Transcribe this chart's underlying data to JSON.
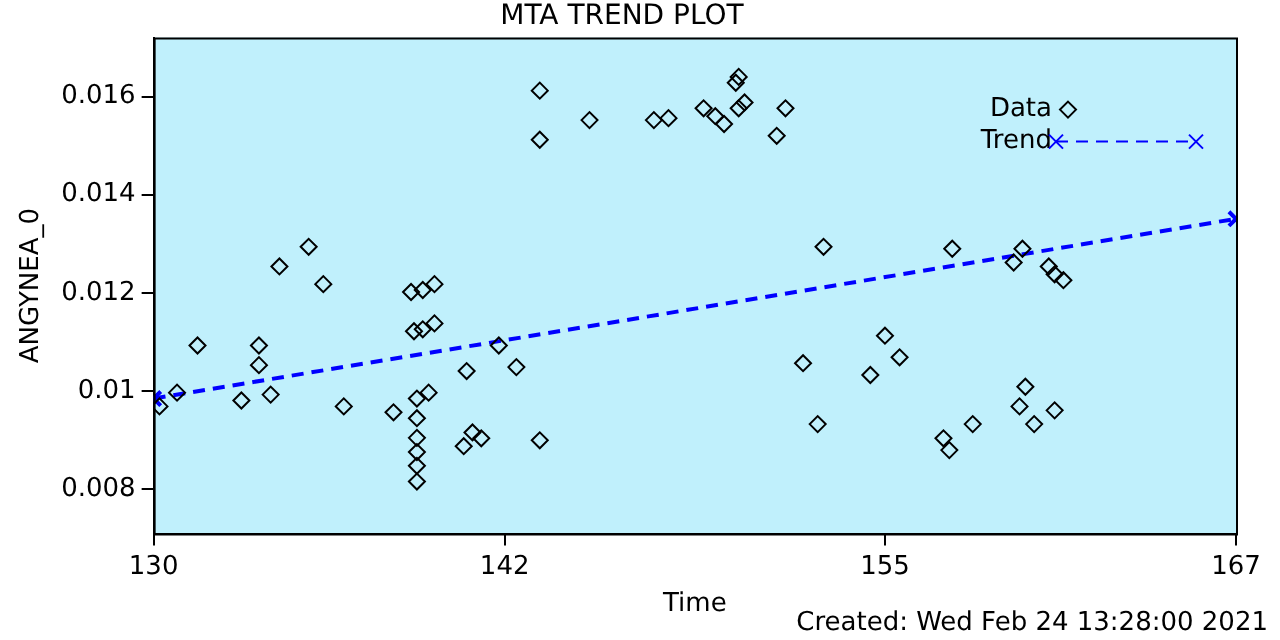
{
  "chart_data": {
    "type": "scatter",
    "title": "MTA TREND PLOT",
    "xlabel": "Time",
    "ylabel": "ANGYNEA_0",
    "annotations": [
      "Created: Wed Feb 24 13:28:00 2021"
    ],
    "xlim": [
      130,
      167
    ],
    "xticks": [
      130,
      142,
      155,
      167
    ],
    "ylim": [
      0.0071,
      0.0172
    ],
    "yticks": [
      0.008,
      0.01,
      0.012,
      0.014,
      0.016
    ],
    "grid": false,
    "legend": "top right",
    "series": [
      {
        "name": "Data",
        "color": "#000000",
        "marker": "diamond",
        "x": [
          130.2,
          130.8,
          131.5,
          133.0,
          133.6,
          133.6,
          134.0,
          134.3,
          135.3,
          135.8,
          136.5,
          138.2,
          138.8,
          139.2,
          139.6,
          139.0,
          139.0,
          139.0,
          139.0,
          139.0,
          139.0,
          138.9,
          139.2,
          139.6,
          139.4,
          140.7,
          141.8,
          142.4,
          140.6,
          140.9,
          141.2,
          143.2,
          143.2,
          143.2,
          144.9,
          147.1,
          147.6,
          148.8,
          149.2,
          149.5,
          149.9,
          150.0,
          150.0,
          150.2,
          151.6,
          151.3,
          152.9,
          152.2,
          152.7,
          155.0,
          155.5,
          154.5,
          157.3,
          159.4,
          159.7,
          160.6,
          160.8,
          161.1,
          157.0,
          157.2,
          158.0,
          159.8,
          159.6,
          160.1,
          160.8
        ],
        "values": [
          0.00969,
          0.00997,
          0.01093,
          0.00981,
          0.01093,
          0.01053,
          0.00993,
          0.01254,
          0.01294,
          0.01218,
          0.00969,
          0.00957,
          0.01202,
          0.01206,
          0.01218,
          0.00985,
          0.00945,
          0.00905,
          0.00876,
          0.00848,
          0.00816,
          0.01122,
          0.01126,
          0.01138,
          0.00997,
          0.01041,
          0.01093,
          0.01049,
          0.00888,
          0.00916,
          0.00904,
          0.009,
          0.01612,
          0.01512,
          0.01552,
          0.01552,
          0.01556,
          0.01576,
          0.0156,
          0.01544,
          0.01628,
          0.0164,
          0.01576,
          0.01588,
          0.01576,
          0.0152,
          0.01294,
          0.01057,
          0.00933,
          0.01113,
          0.01069,
          0.01033,
          0.0129,
          0.01262,
          0.0129,
          0.01254,
          0.01238,
          0.01226,
          0.00904,
          0.0088,
          0.00933,
          0.01009,
          0.00969,
          0.00933,
          0.00961
        ]
      },
      {
        "name": "Trend",
        "type": "line",
        "color": "#0000ff",
        "marker": "cross",
        "line_style": "dashed",
        "x": [
          130,
          167
        ],
        "values": [
          0.00985,
          0.01351
        ]
      }
    ]
  }
}
